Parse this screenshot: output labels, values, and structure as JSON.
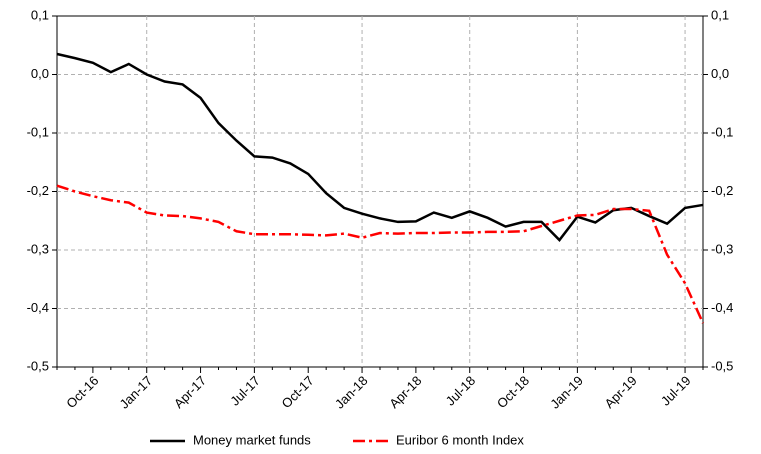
{
  "chart_data": {
    "type": "line",
    "categories": [
      null,
      null,
      "Oct-16",
      null,
      null,
      "Jan-17",
      null,
      null,
      "Apr-17",
      null,
      null,
      "Jul-17",
      null,
      null,
      "Oct-17",
      null,
      null,
      "Jan-18",
      null,
      null,
      "Apr-18",
      null,
      null,
      "Jul-18",
      null,
      null,
      "Oct-18",
      null,
      null,
      "Jan-19",
      null,
      null,
      "Apr-19",
      null,
      null,
      "Jul-19",
      null
    ],
    "series": [
      {
        "name": "Money market funds",
        "color": "#000000",
        "dash": "solid",
        "values": [
          0.035,
          0.028,
          0.02,
          0.004,
          0.018,
          0.0,
          -0.012,
          -0.017,
          -0.04,
          -0.083,
          -0.113,
          -0.14,
          -0.142,
          -0.152,
          -0.17,
          -0.203,
          -0.228,
          -0.238,
          -0.246,
          -0.252,
          -0.251,
          -0.236,
          -0.245,
          -0.234,
          -0.245,
          -0.26,
          -0.252,
          -0.252,
          -0.283,
          -0.243,
          -0.253,
          -0.232,
          -0.228,
          -0.242,
          -0.255,
          -0.228,
          -0.223
        ]
      },
      {
        "name": "Euribor 6 month Index",
        "color": "#ff0000",
        "dash": "dashdot",
        "values": [
          -0.19,
          -0.2,
          -0.208,
          -0.215,
          -0.219,
          -0.236,
          -0.241,
          -0.242,
          -0.246,
          -0.252,
          -0.268,
          -0.273,
          -0.273,
          -0.273,
          -0.274,
          -0.275,
          -0.272,
          -0.279,
          -0.271,
          -0.272,
          -0.271,
          -0.271,
          -0.27,
          -0.27,
          -0.269,
          -0.269,
          -0.268,
          -0.259,
          -0.25,
          -0.241,
          -0.24,
          -0.23,
          -0.23,
          -0.233,
          -0.308,
          -0.357,
          -0.425
        ]
      }
    ],
    "ylim": [
      -0.5,
      0.1
    ],
    "yticks": [
      {
        "value": -0.5,
        "label": "-0,5"
      },
      {
        "value": -0.4,
        "label": "-0,4"
      },
      {
        "value": -0.3,
        "label": "-0,3"
      },
      {
        "value": -0.2,
        "label": "-0,2"
      },
      {
        "value": -0.1,
        "label": "-0,1"
      },
      {
        "value": 0.0,
        "label": "0,0"
      },
      {
        "value": 0.1,
        "label": "0,1"
      }
    ],
    "grid": true,
    "legend": "bottom"
  }
}
